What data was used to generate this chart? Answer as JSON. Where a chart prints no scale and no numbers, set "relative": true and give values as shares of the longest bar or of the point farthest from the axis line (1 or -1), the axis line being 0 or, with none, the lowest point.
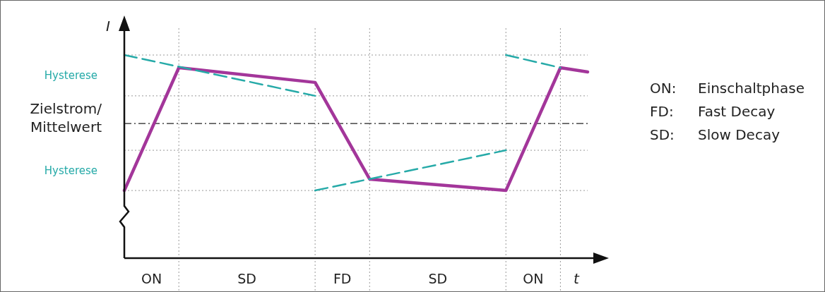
{
  "chart_data": {
    "type": "line",
    "relative": true,
    "grid": true,
    "ylabel": "I",
    "xlabel": "t",
    "categories": [
      null,
      null,
      null,
      null,
      null,
      null,
      null,
      null,
      null,
      null,
      null,
      null,
      null,
      null,
      null,
      null,
      null,
      null
    ],
    "series": [
      {
        "color": "#a3369a",
        "values": [
          0.333,
          null,
          0.9375,
          null,
          null,
          null,
          null,
          0.865,
          null,
          0.389,
          null,
          null,
          null,
          null,
          0.333,
          null,
          0.9375,
          0.917
        ],
        "line_style": "solid"
      },
      {
        "color": "#26aaa8",
        "values": [
          1,
          null,
          null,
          null,
          null,
          null,
          null,
          0.799,
          null,
          null,
          null,
          null,
          null,
          null,
          null,
          null,
          null,
          null
        ],
        "line_style": "dashed"
      },
      {
        "color": "#26aaa8",
        "values": [
          null,
          null,
          null,
          null,
          null,
          null,
          null,
          0.333,
          null,
          null,
          null,
          null,
          null,
          null,
          0.531,
          null,
          null,
          null
        ],
        "line_style": "dashed"
      },
      {
        "color": "#26aaa8",
        "values": [
          null,
          null,
          null,
          null,
          null,
          null,
          null,
          null,
          null,
          null,
          null,
          null,
          null,
          null,
          1,
          null,
          0.9375,
          null
        ],
        "line_style": "dashed"
      }
    ],
    "ref_lines": [
      {
        "axis": "y",
        "value": 0.663,
        "label": "Zielstrom/Mittelwert",
        "line_style": "dashed"
      }
    ],
    "annotations": [
      "Hysterese",
      "Hysterese",
      "ON",
      "SD",
      "FD",
      "SD",
      "ON",
      "ON: Einschaltphase",
      "FD: Fast Decay",
      "SD: Slow Decay"
    ]
  }
}
